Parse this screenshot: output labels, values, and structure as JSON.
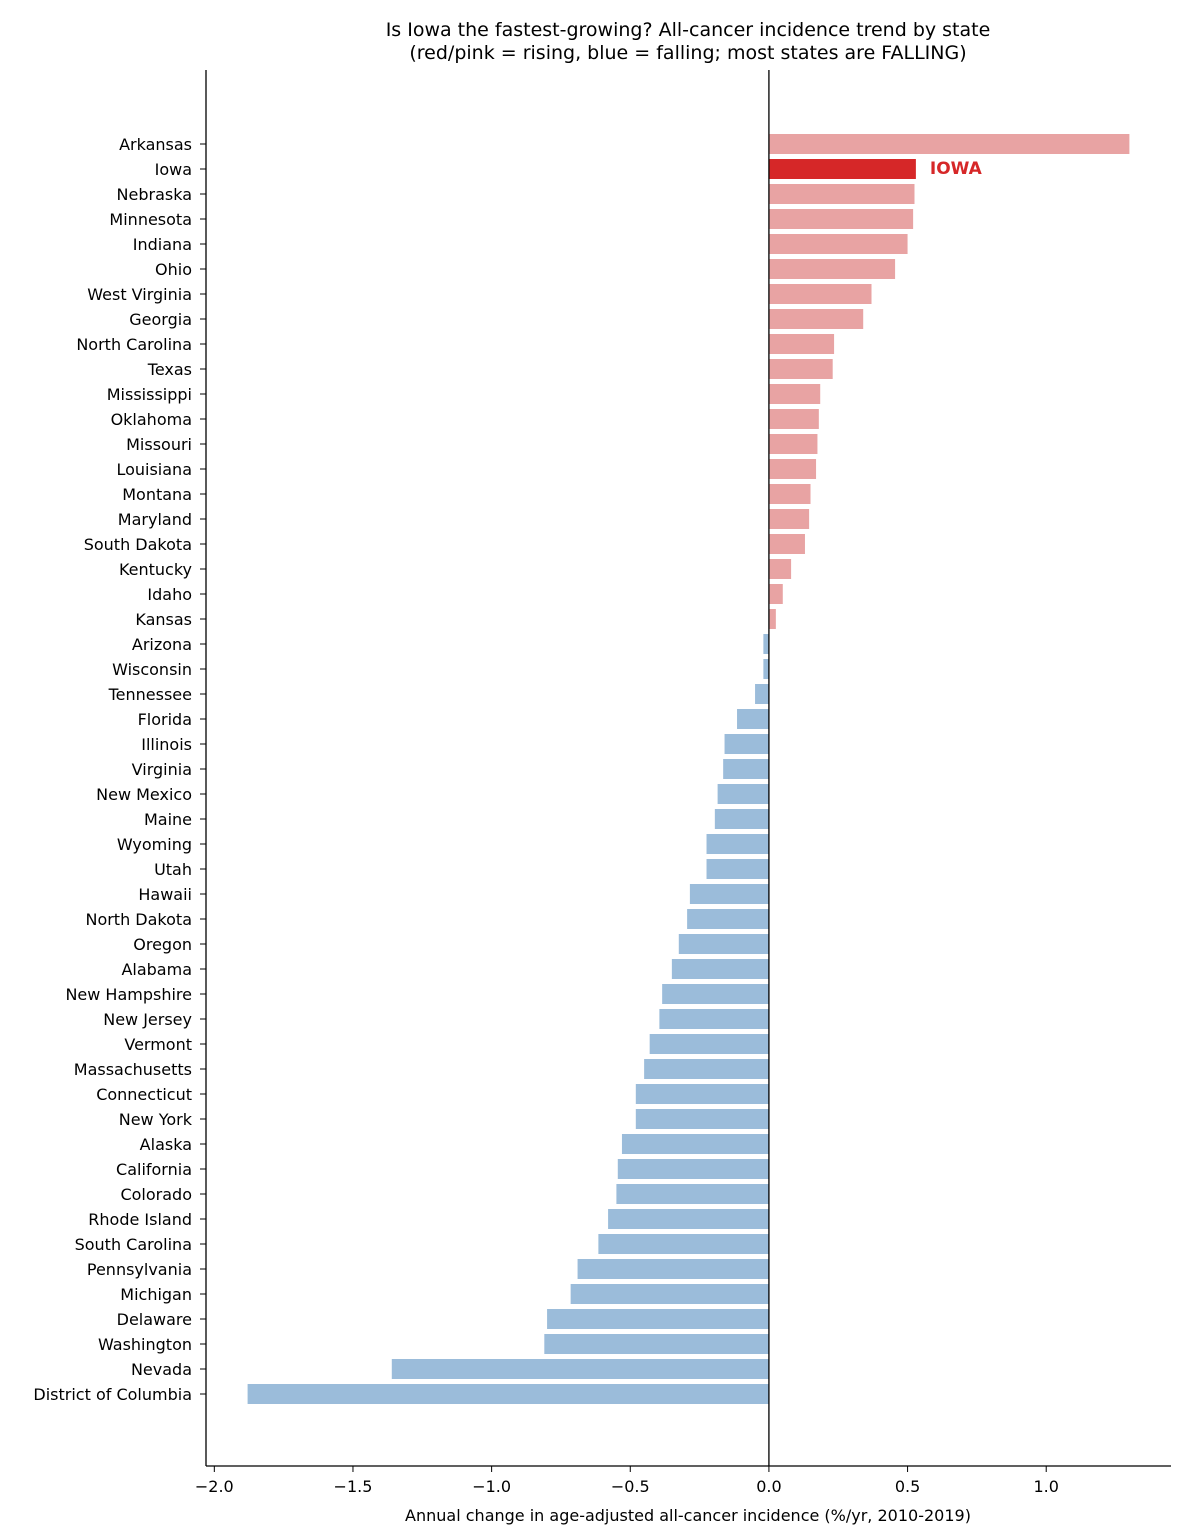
{
  "chart_data": {
    "type": "bar",
    "orientation": "horizontal",
    "title_line1": "Is Iowa the fastest-growing? All-cancer incidence trend by state",
    "title_line2": "(red/pink = rising, blue = falling; most states are FALLING)",
    "xlabel": "Annual change in age-adjusted all-cancer incidence (%/yr, 2010-2019)",
    "ylabel": "",
    "xlim": [
      -2.03,
      1.45
    ],
    "xticks": [
      -2.0,
      -1.5,
      -1.0,
      -0.5,
      0.0,
      0.5,
      1.0
    ],
    "xtick_labels": [
      "−2.0",
      "−1.5",
      "−1.0",
      "−0.5",
      "0.0",
      "0.5",
      "1.0"
    ],
    "grid": false,
    "categories": [
      "Arkansas",
      "Iowa",
      "Nebraska",
      "Minnesota",
      "Indiana",
      "Ohio",
      "West Virginia",
      "Georgia",
      "North Carolina",
      "Texas",
      "Mississippi",
      "Oklahoma",
      "Missouri",
      "Louisiana",
      "Montana",
      "Maryland",
      "South Dakota",
      "Kentucky",
      "Idaho",
      "Kansas",
      "Arizona",
      "Wisconsin",
      "Tennessee",
      "Florida",
      "Illinois",
      "Virginia",
      "New Mexico",
      "Maine",
      "Wyoming",
      "Utah",
      "Hawaii",
      "North Dakota",
      "Oregon",
      "Alabama",
      "New Hampshire",
      "New Jersey",
      "Vermont",
      "Massachusetts",
      "Connecticut",
      "New York",
      "Alaska",
      "California",
      "Colorado",
      "Rhode Island",
      "South Carolina",
      "Pennsylvania",
      "Michigan",
      "Delaware",
      "Washington",
      "Nevada",
      "District of Columbia"
    ],
    "values": [
      1.3,
      0.53,
      0.525,
      0.52,
      0.5,
      0.455,
      0.37,
      0.34,
      0.235,
      0.23,
      0.185,
      0.18,
      0.175,
      0.17,
      0.15,
      0.145,
      0.13,
      0.08,
      0.05,
      0.025,
      -0.02,
      -0.02,
      -0.05,
      -0.115,
      -0.16,
      -0.165,
      -0.185,
      -0.195,
      -0.225,
      -0.225,
      -0.285,
      -0.295,
      -0.325,
      -0.35,
      -0.385,
      -0.395,
      -0.43,
      -0.45,
      -0.48,
      -0.48,
      -0.53,
      -0.545,
      -0.55,
      -0.58,
      -0.615,
      -0.69,
      -0.715,
      -0.8,
      -0.81,
      -1.36,
      -1.88
    ],
    "highlight": "Iowa",
    "annotation": "IOWA",
    "colors": {
      "rising": "#e8a3a3",
      "falling": "#9bbcda",
      "highlight": "#d62728",
      "axis": "#000000"
    }
  }
}
